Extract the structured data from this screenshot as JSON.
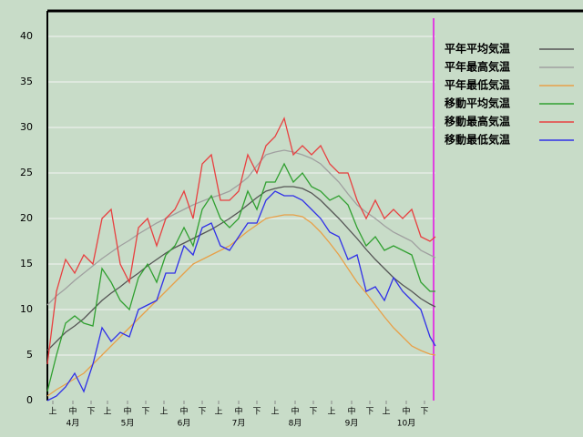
{
  "chart_data": {
    "type": "line",
    "x": [
      0,
      5,
      10,
      15,
      20,
      25,
      30,
      35,
      40,
      45,
      50,
      55,
      60,
      65,
      70,
      75,
      80,
      85,
      90,
      95,
      100,
      105,
      110,
      115,
      120,
      125,
      130,
      135,
      140,
      145,
      150,
      155,
      160,
      165,
      170,
      175,
      180,
      185,
      190,
      195,
      200,
      205,
      210,
      213
    ],
    "xlim": [
      0,
      213
    ],
    "xticks": [
      {
        "value": 3,
        "label": "上"
      },
      {
        "value": 14,
        "label": "中"
      },
      {
        "value": 24,
        "label": "下"
      },
      {
        "value": 33,
        "label": "上"
      },
      {
        "value": 44,
        "label": "中"
      },
      {
        "value": 54,
        "label": "下"
      },
      {
        "value": 64,
        "label": "上"
      },
      {
        "value": 75,
        "label": "中"
      },
      {
        "value": 85,
        "label": "下"
      },
      {
        "value": 94,
        "label": "上"
      },
      {
        "value": 105,
        "label": "中"
      },
      {
        "value": 115,
        "label": "下"
      },
      {
        "value": 125,
        "label": "上"
      },
      {
        "value": 136,
        "label": "中"
      },
      {
        "value": 146,
        "label": "下"
      },
      {
        "value": 156,
        "label": "上"
      },
      {
        "value": 167,
        "label": "中"
      },
      {
        "value": 177,
        "label": "下"
      },
      {
        "value": 186,
        "label": "上"
      },
      {
        "value": 197,
        "label": "中"
      },
      {
        "value": 207,
        "label": "下"
      }
    ],
    "month_ticks": [
      {
        "value": 14,
        "label": "4月"
      },
      {
        "value": 44,
        "label": "5月"
      },
      {
        "value": 75,
        "label": "6月"
      },
      {
        "value": 105,
        "label": "7月"
      },
      {
        "value": 136,
        "label": "8月"
      },
      {
        "value": 167,
        "label": "9月"
      },
      {
        "value": 197,
        "label": "10月"
      }
    ],
    "ylim": [
      0,
      42.8
    ],
    "yticks": [
      0,
      5,
      10,
      15,
      20,
      25,
      30,
      35,
      40
    ],
    "grid": true,
    "legend": "right",
    "series": [
      {
        "name": "平年平均気温",
        "color": "#555555",
        "values": [
          5.5,
          6.5,
          7.5,
          8.2,
          9,
          10,
          11,
          11.8,
          12.5,
          13.3,
          14,
          14.8,
          15.5,
          16.2,
          16.8,
          17.3,
          17.8,
          18.3,
          18.8,
          19.4,
          20,
          20.7,
          21.5,
          22.3,
          23,
          23.3,
          23.5,
          23.5,
          23.3,
          22.8,
          22,
          21,
          20,
          18.9,
          17.8,
          16.6,
          15.5,
          14.5,
          13.5,
          12.7,
          12,
          11.2,
          10.6,
          10.3
        ]
      },
      {
        "name": "平年最高気温",
        "color": "#a0a0a0",
        "values": [
          10.5,
          11.5,
          12.3,
          13.2,
          14,
          14.8,
          15.6,
          16.3,
          17,
          17.6,
          18.3,
          18.9,
          19.5,
          20,
          20.5,
          21,
          21.5,
          21.9,
          22.3,
          22.6,
          23,
          23.7,
          24.5,
          25.8,
          27,
          27.3,
          27.5,
          27.3,
          27,
          26.6,
          26,
          25,
          24,
          22.7,
          21.5,
          20.7,
          20,
          19.2,
          18.5,
          18,
          17.5,
          16.5,
          16,
          15.7
        ]
      },
      {
        "name": "平年最低気温",
        "color": "#e8a048",
        "values": [
          0.5,
          1.2,
          1.8,
          2.4,
          3,
          4,
          5,
          6,
          7,
          8,
          9,
          10,
          11,
          12,
          13,
          14,
          15,
          15.5,
          16,
          16.5,
          17,
          17.8,
          18.6,
          19.3,
          20,
          20.2,
          20.4,
          20.4,
          20.2,
          19.5,
          18.5,
          17.3,
          16,
          14.5,
          13,
          11.8,
          10.5,
          9.2,
          8,
          7,
          6,
          5.5,
          5.1,
          5
        ]
      },
      {
        "name": "移動平均気温",
        "color": "#30a030",
        "values": [
          1,
          5,
          8.5,
          9.3,
          8.5,
          8.2,
          14.5,
          13,
          11,
          10,
          13.5,
          15,
          13,
          16,
          17,
          19,
          17,
          21,
          22.5,
          20,
          19,
          20,
          23,
          21,
          24,
          24,
          26,
          24,
          25,
          23.5,
          23,
          22,
          22.5,
          21.5,
          19,
          17,
          18,
          16.5,
          17,
          16.5,
          16,
          13,
          12,
          12
        ]
      },
      {
        "name": "移動最高気温",
        "color": "#e84040",
        "values": [
          4,
          12,
          15.5,
          14,
          16,
          15,
          20,
          21,
          15,
          13,
          19,
          20,
          17,
          20,
          21,
          23,
          20,
          26,
          27,
          22,
          22,
          23,
          27,
          25,
          28,
          29,
          31,
          27,
          28,
          27,
          28,
          26,
          25,
          25,
          22,
          20,
          22,
          20,
          21,
          20,
          21,
          18,
          17.5,
          18
        ]
      },
      {
        "name": "移動最低気温",
        "color": "#3030e8",
        "values": [
          0,
          0.5,
          1.5,
          3,
          1,
          4,
          8,
          6.5,
          7.5,
          7,
          10,
          10.5,
          11,
          14,
          14,
          17,
          16,
          19,
          19.5,
          17,
          16.5,
          18,
          19.5,
          19.5,
          22,
          23,
          22.5,
          22.5,
          22,
          21,
          20,
          18.5,
          18,
          15.5,
          16,
          12,
          12.5,
          11,
          13.5,
          12,
          11,
          10,
          7,
          6
        ]
      }
    ]
  }
}
